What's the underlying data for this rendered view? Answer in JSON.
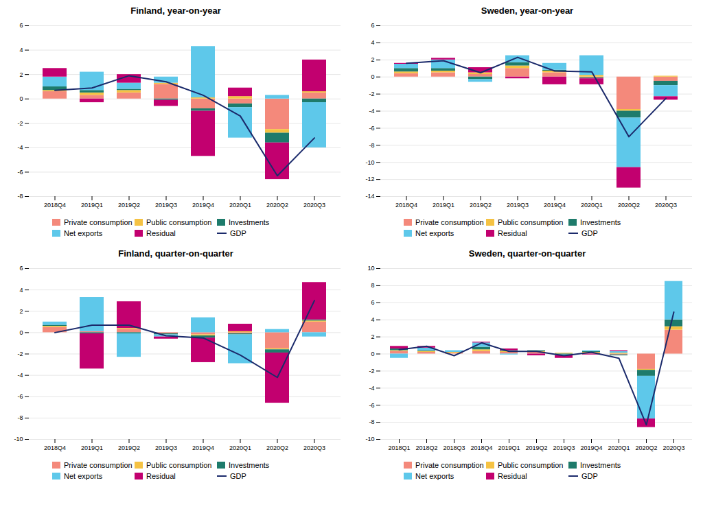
{
  "chart_data": [
    {
      "type": "bar",
      "stacked": true,
      "grid": true,
      "legend": "bottom",
      "title": "Finland, year-on-year",
      "categories": [
        "2018Q4",
        "2019Q1",
        "2019Q2",
        "2019Q3",
        "2019Q4",
        "2020Q1",
        "2020Q2",
        "2020Q3"
      ],
      "series": [
        {
          "name": "Private consumption",
          "color": "#F4897B",
          "values": [
            0.6,
            0.3,
            0.5,
            1.2,
            -0.8,
            -0.4,
            -2.5,
            0.5
          ]
        },
        {
          "name": "Public consumption",
          "color": "#F5C243",
          "values": [
            0.1,
            0.2,
            0.2,
            0.1,
            0.1,
            0.2,
            -0.3,
            0.1
          ]
        },
        {
          "name": "Investments",
          "color": "#1E7B6B",
          "values": [
            0.3,
            0.2,
            0.1,
            -0.1,
            -0.2,
            -0.3,
            -0.8,
            -0.3
          ]
        },
        {
          "name": "Net exports",
          "color": "#5EC8EA",
          "values": [
            0.8,
            1.5,
            0.5,
            0.5,
            4.2,
            -2.5,
            0.3,
            -3.7
          ]
        },
        {
          "name": "Residual",
          "color": "#C2006F",
          "values": [
            0.7,
            -0.3,
            0.7,
            -0.5,
            -3.7,
            0.7,
            -3.0,
            2.6
          ]
        },
        {
          "name": "GDP",
          "type": "line",
          "color": "#1B2A6B",
          "values": [
            0.7,
            0.9,
            1.9,
            1.4,
            0.3,
            -1.4,
            -6.3,
            -3.2
          ]
        }
      ],
      "ylim": [
        -8,
        6
      ],
      "yticks": [
        -8,
        -6,
        -4,
        -2,
        0,
        2,
        4,
        6
      ]
    },
    {
      "type": "bar",
      "stacked": true,
      "grid": true,
      "legend": "bottom",
      "title": "Sweden, year-on-year",
      "categories": [
        "2018Q4",
        "2019Q1",
        "2019Q2",
        "2019Q3",
        "2019Q4",
        "2020Q1",
        "2020Q2",
        "2020Q3"
      ],
      "series": [
        {
          "name": "Private consumption",
          "color": "#F4897B",
          "values": [
            0.4,
            0.5,
            0.3,
            1.0,
            0.5,
            -0.1,
            -3.8,
            -0.5
          ]
        },
        {
          "name": "Public consumption",
          "color": "#F5C243",
          "values": [
            0.2,
            0.2,
            0.2,
            0.3,
            0.2,
            0.2,
            -0.2,
            0.1
          ]
        },
        {
          "name": "Investments",
          "color": "#1E7B6B",
          "values": [
            0.4,
            0.3,
            -0.3,
            0.4,
            0.1,
            -0.1,
            -0.8,
            -0.5
          ]
        },
        {
          "name": "Net exports",
          "color": "#5EC8EA",
          "values": [
            0.5,
            1.0,
            -0.3,
            0.8,
            0.8,
            2.3,
            -5.8,
            -1.3
          ]
        },
        {
          "name": "Residual",
          "color": "#C2006F",
          "values": [
            0.1,
            0.2,
            0.6,
            -0.2,
            -0.9,
            -0.7,
            -2.4,
            -0.4
          ]
        },
        {
          "name": "GDP",
          "type": "line",
          "color": "#1B2A6B",
          "values": [
            1.6,
            1.9,
            0.5,
            2.3,
            0.7,
            0.6,
            -7.0,
            -2.5
          ]
        }
      ],
      "ylim": [
        -14,
        6
      ],
      "yticks": [
        -14,
        -12,
        -10,
        -8,
        -6,
        -4,
        -2,
        0,
        2,
        4,
        6
      ]
    },
    {
      "type": "bar",
      "stacked": true,
      "grid": true,
      "legend": "bottom",
      "title": "Finland, quarter-on-quarter",
      "categories": [
        "2018Q4",
        "2019Q1",
        "2019Q2",
        "2019Q3",
        "2019Q4",
        "2020Q1",
        "2020Q2",
        "2020Q3"
      ],
      "series": [
        {
          "name": "Private consumption",
          "color": "#F4897B",
          "values": [
            0.5,
            0.1,
            0.3,
            -0.1,
            -0.2,
            -0.1,
            -1.5,
            1.0
          ]
        },
        {
          "name": "Public consumption",
          "color": "#F5C243",
          "values": [
            0.1,
            0.0,
            0.1,
            0.0,
            -0.1,
            0.1,
            -0.1,
            0.1
          ]
        },
        {
          "name": "Investments",
          "color": "#1E7B6B",
          "values": [
            0.1,
            -0.1,
            -0.1,
            -0.1,
            -0.2,
            -0.1,
            -0.3,
            0.1
          ]
        },
        {
          "name": "Net exports",
          "color": "#5EC8EA",
          "values": [
            0.3,
            3.2,
            -2.2,
            -0.2,
            1.4,
            -2.7,
            0.3,
            -0.4
          ]
        },
        {
          "name": "Residual",
          "color": "#C2006F",
          "values": [
            0.0,
            -3.3,
            2.5,
            -0.2,
            -2.3,
            0.7,
            -4.7,
            3.5
          ]
        },
        {
          "name": "GDP",
          "type": "line",
          "color": "#1B2A6B",
          "values": [
            0.0,
            0.7,
            0.7,
            -0.3,
            -0.5,
            -2.1,
            -4.2,
            3.0
          ]
        }
      ],
      "ylim": [
        -10,
        6
      ],
      "yticks": [
        -10,
        -8,
        -6,
        -4,
        -2,
        0,
        2,
        4,
        6
      ]
    },
    {
      "type": "bar",
      "stacked": true,
      "grid": true,
      "legend": "bottom",
      "title": "Sweden, quarter-on-quarter",
      "categories": [
        "2018Q1",
        "2018Q2",
        "2018Q3",
        "2018Q4",
        "2019Q1",
        "2019Q2",
        "2019Q3",
        "2019Q4",
        "2020Q1",
        "2020Q2",
        "2020Q3"
      ],
      "series": [
        {
          "name": "Private consumption",
          "color": "#F4897B",
          "values": [
            0.3,
            0.2,
            0.1,
            0.3,
            0.2,
            0.2,
            0.0,
            0.1,
            -0.1,
            -1.8,
            2.8
          ]
        },
        {
          "name": "Public consumption",
          "color": "#F5C243",
          "values": [
            0.1,
            0.1,
            0.1,
            0.2,
            0.1,
            0.1,
            0.1,
            0.1,
            0.1,
            -0.1,
            0.4
          ]
        },
        {
          "name": "Investments",
          "color": "#1E7B6B",
          "values": [
            0.2,
            0.1,
            0.0,
            0.3,
            0.1,
            0.1,
            -0.1,
            0.1,
            -0.1,
            -0.7,
            0.8
          ]
        },
        {
          "name": "Net exports",
          "color": "#5EC8EA",
          "values": [
            -0.5,
            0.3,
            0.2,
            0.5,
            -0.1,
            0.0,
            -0.1,
            0.1,
            0.2,
            -5.0,
            4.5
          ]
        },
        {
          "name": "Residual",
          "color": "#C2006F",
          "values": [
            0.3,
            0.2,
            0.0,
            0.1,
            0.2,
            -0.2,
            -0.3,
            -0.1,
            0.1,
            -1.0,
            0.0
          ]
        },
        {
          "name": "GDP",
          "type": "line",
          "color": "#1B2A6B",
          "values": [
            0.5,
            0.9,
            -0.2,
            1.3,
            0.3,
            0.3,
            -0.2,
            0.2,
            -0.5,
            -8.3,
            4.9
          ]
        }
      ],
      "ylim": [
        -10,
        10
      ],
      "yticks": [
        -10,
        -8,
        -6,
        -4,
        -2,
        0,
        2,
        4,
        6,
        8,
        10
      ]
    }
  ]
}
